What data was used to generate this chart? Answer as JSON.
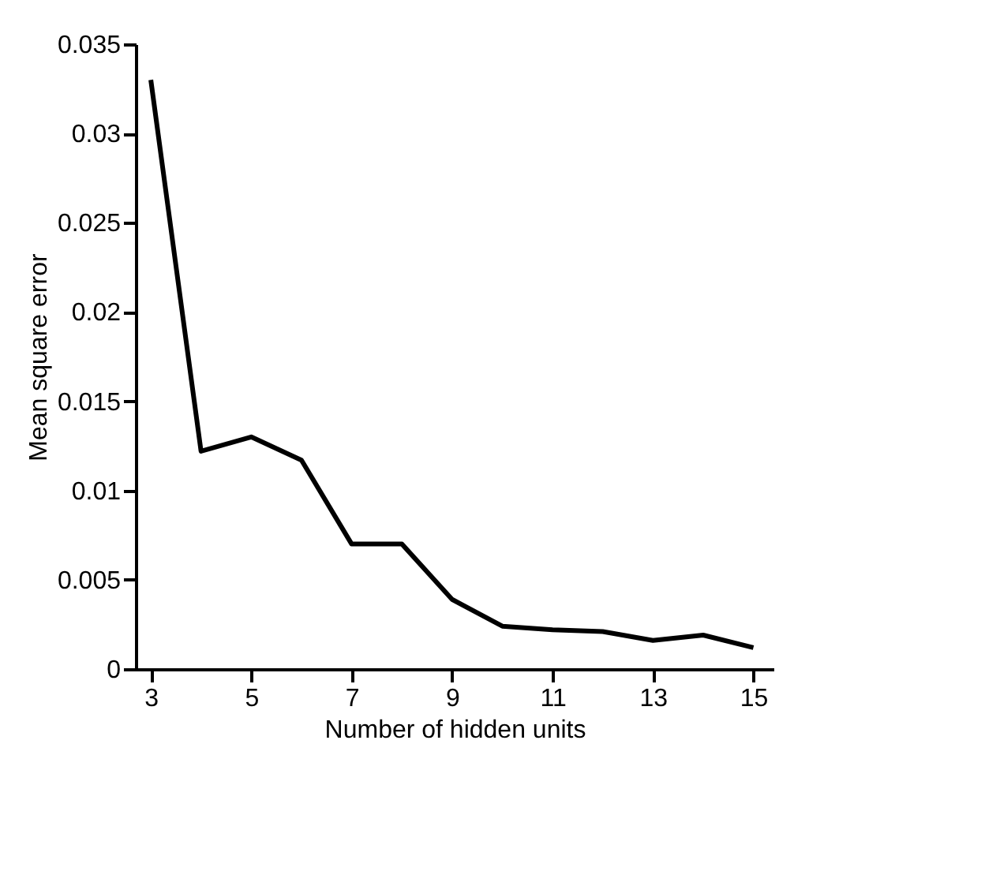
{
  "chart_data": {
    "type": "line",
    "xlabel": "Number of hidden units",
    "ylabel": "Mean square error",
    "x": [
      3,
      4,
      5,
      6,
      7,
      8,
      9,
      10,
      11,
      12,
      13,
      14,
      15
    ],
    "series": [
      {
        "color": "#000000",
        "values": [
          0.033,
          0.0122,
          0.013,
          0.0117,
          0.007,
          0.007,
          0.0039,
          0.0024,
          0.0022,
          0.0021,
          0.0016,
          0.0019,
          0.0012
        ]
      }
    ],
    "xlim": [
      2.7,
      15.4
    ],
    "xticks": [
      3,
      5,
      7,
      9,
      11,
      13,
      15
    ],
    "ylim": [
      0,
      0.035
    ],
    "yticks": [
      0,
      0.005,
      0.01,
      0.015,
      0.02,
      0.025,
      0.03,
      0.035
    ],
    "grid": false,
    "legend": false,
    "marker": "none",
    "line_style": "solid"
  }
}
